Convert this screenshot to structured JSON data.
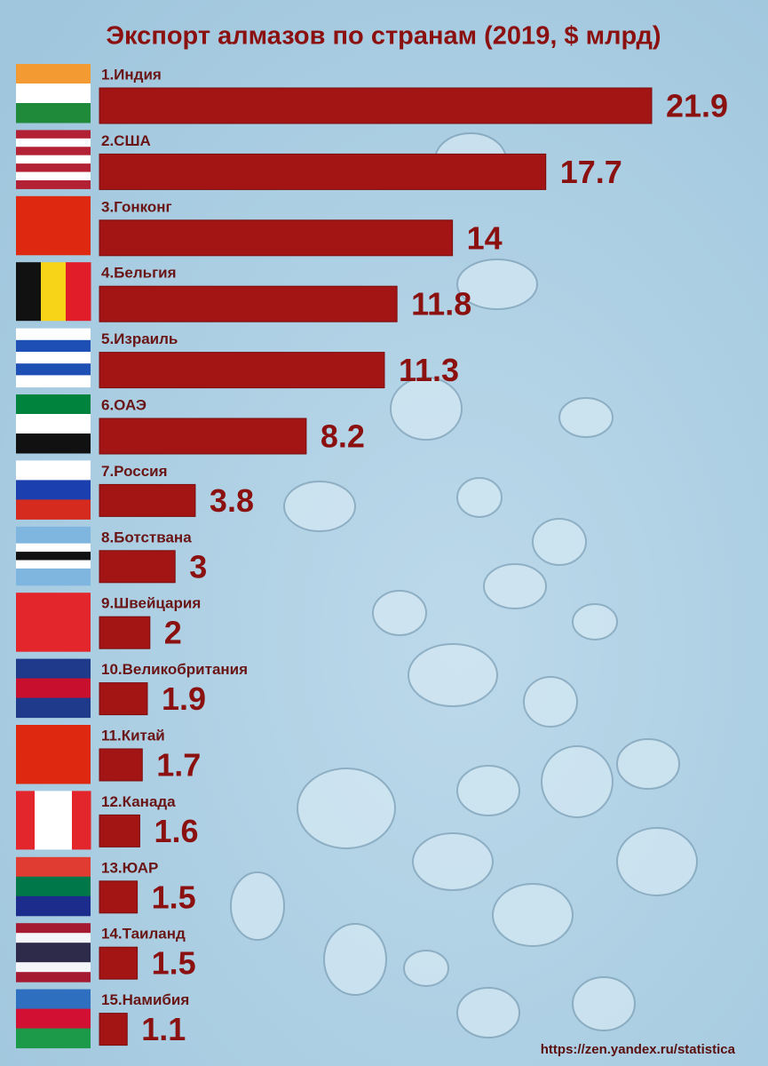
{
  "chart_data": {
    "type": "bar",
    "orientation": "horizontal",
    "title": "Экспорт алмазов по странам (2019, $ млрд)",
    "source": "https://zen.yandex.ru/statistica",
    "color": "#a31515",
    "categories": [
      "1.Индия",
      "2.США",
      "3.Гонконг",
      "4.Бельгия",
      "5.Израиль",
      "6.ОАЭ",
      "7.Россия",
      "8.Ботствана",
      "9.Швейцария",
      "10.Великобритания",
      "11.Китай",
      "12.Канада",
      "13.ЮАР",
      "14.Таиланд",
      "15.Намибия"
    ],
    "values": [
      21.9,
      17.7,
      14,
      11.8,
      11.3,
      8.2,
      3.8,
      3,
      2,
      1.9,
      1.7,
      1.6,
      1.5,
      1.5,
      1.1
    ]
  }
}
